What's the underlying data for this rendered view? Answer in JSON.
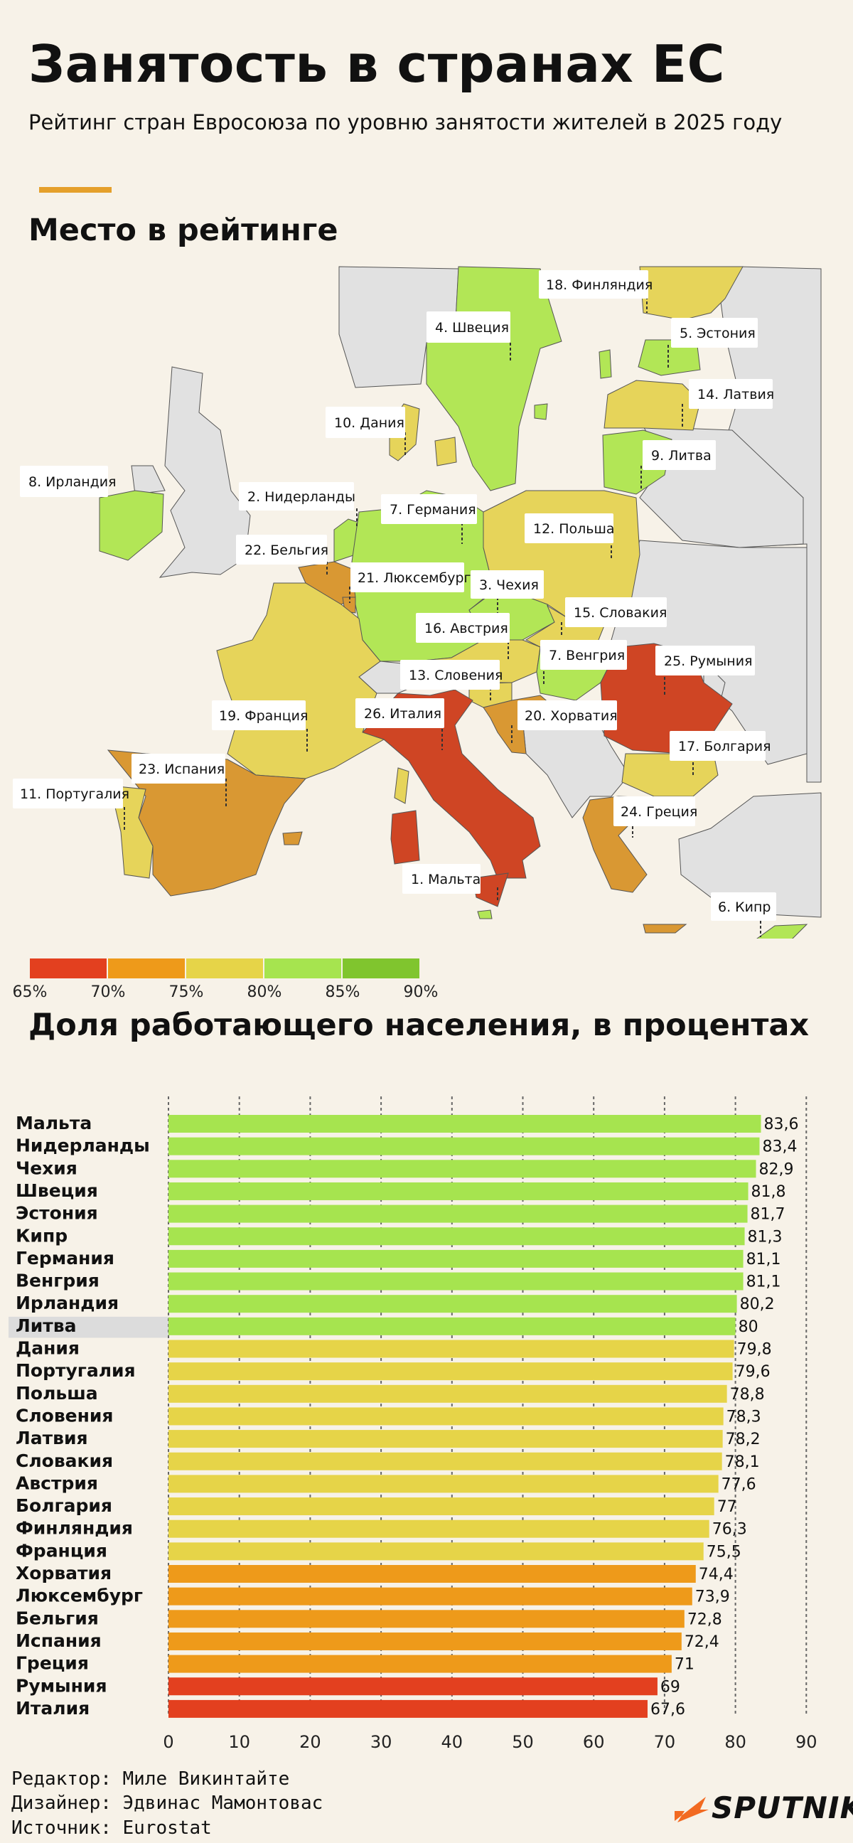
{
  "header": {
    "title": "Занятость в странах ЕС",
    "subtitle": "Рейтинг стран Евросоюза по уровню занятости жителей в 2025 году"
  },
  "map": {
    "heading": "Место в рейтинге",
    "labels": {
      "finland": "18. Финляндия",
      "sweden": "4. Швеция",
      "estonia": "5. Эстония",
      "latvia": "14. Латвия",
      "lithuania": "9. Литва",
      "denmark": "10. Дания",
      "ireland": "8. Ирландия",
      "netherlands": "2. Нидерланды",
      "germany": "7. Германия",
      "poland": "12. Польша",
      "belgium": "22. Бельгия",
      "luxembourg": "21. Люксембург",
      "czechia": "3. Чехия",
      "slovakia": "15. Словакия",
      "austria": "16. Австрия",
      "hungary": "7. Венгрия",
      "romania": "25. Румыния",
      "slovenia": "13. Словения",
      "italy": "26. Италия",
      "croatia": "20. Хорватия",
      "france": "19. Франция",
      "bulgaria": "17. Болгария",
      "spain": "23. Испания",
      "portugal": "11. Португалия",
      "greece": "24. Греция",
      "malta": "1. Мальта",
      "cyprus": "6. Кипр"
    },
    "legend": {
      "ticks": [
        "65%",
        "70%",
        "75%",
        "80%",
        "85%",
        "90%"
      ],
      "colors": [
        "#e3401f",
        "#ee9a1a",
        "#e6d448",
        "#a6e44f",
        "#80c52e"
      ]
    }
  },
  "colors": {
    "red": "#e3401f",
    "orange": "#ee9a1a",
    "yellow": "#e6d448",
    "green": "#a6e44f",
    "highlight": "#dcdcdc",
    "map_non_eu": "#e1e1e1",
    "map_red": "#cf4524",
    "map_orange": "#d99833",
    "map_yellow": "#e6d45a",
    "map_green": "#b2e656"
  },
  "chart": {
    "heading": "Доля работающего населения, в процентах"
  },
  "chart_data": {
    "type": "bar",
    "orientation": "horizontal",
    "categories": [
      "Мальта",
      "Нидерланды",
      "Чехия",
      "Швеция",
      "Эстония",
      "Кипр",
      "Германия",
      "Венгрия",
      "Ирландия",
      "Литва",
      "Дания",
      "Португалия",
      "Польша",
      "Словения",
      "Латвия",
      "Словакия",
      "Австрия",
      "Болгария",
      "Финляндия",
      "Франция",
      "Хорватия",
      "Люксембург",
      "Бельгия",
      "Испания",
      "Греция",
      "Румыния",
      "Италия"
    ],
    "values": [
      83.6,
      83.4,
      82.9,
      81.8,
      81.7,
      81.3,
      81.1,
      81.1,
      80.2,
      80,
      79.8,
      79.6,
      78.8,
      78.3,
      78.2,
      78.1,
      77.6,
      77,
      76.3,
      75.5,
      74.4,
      73.9,
      72.8,
      72.4,
      71,
      69,
      67.6
    ],
    "value_labels": [
      "83,6",
      "83,4",
      "82,9",
      "81,8",
      "81,7",
      "81,3",
      "81,1",
      "81,1",
      "80,2",
      "80",
      "79,8",
      "79,6",
      "78,8",
      "78,3",
      "78,2",
      "78,1",
      "77,6",
      "77",
      "76,3",
      "75,5",
      "74,4",
      "73,9",
      "72,8",
      "72,4",
      "71",
      "69",
      "67,6"
    ],
    "xlim": [
      0,
      90
    ],
    "xticks": [
      "0",
      "10",
      "20",
      "30",
      "40",
      "50",
      "60",
      "70",
      "80",
      "90"
    ],
    "grid": true,
    "highlight": "Литва",
    "color_thresholds": [
      70,
      75,
      80
    ]
  },
  "footer": {
    "editor": "Редактор: Миле Викинтайте",
    "designer": "Дизайнер: Эдвинас Мамонтовас",
    "source": "Источник: Eurostat",
    "logo": "SPUTNIK"
  }
}
